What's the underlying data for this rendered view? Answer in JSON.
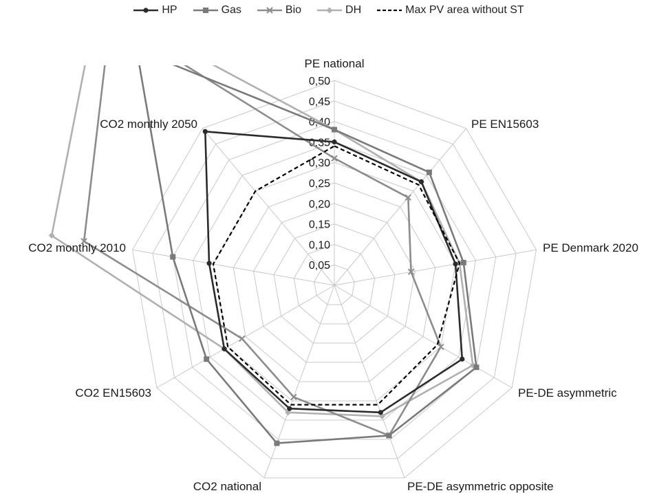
{
  "chart_data": {
    "type": "radar",
    "categories": [
      "PE national",
      "PE EN15603",
      "PE Denmark 2020",
      "PE-DE asymmetric",
      "PE-DE asymmetric opposite",
      "CO2 national",
      "CO2 EN15603",
      "CO2 monthly 2010",
      "CO2 monthly 2050"
    ],
    "ticks": [
      "0,05",
      "0,10",
      "0,15",
      "0,20",
      "0,25",
      "0,30",
      "0,35",
      "0,40",
      "0,45",
      "0,50"
    ],
    "rlim": [
      0,
      0.5
    ],
    "legend_position": "top",
    "series": [
      {
        "name": "HP",
        "color": "#2b2b2b",
        "dash": "",
        "marker": "circle",
        "values": [
          0.35,
          0.33,
          0.3,
          0.36,
          0.33,
          0.32,
          0.31,
          0.31,
          0.49
        ]
      },
      {
        "name": "Gas",
        "color": "#7a7a7a",
        "dash": "",
        "marker": "square",
        "values": [
          0.38,
          0.36,
          0.32,
          0.4,
          0.39,
          0.41,
          0.36,
          0.4,
          0.75
        ]
      },
      {
        "name": "Bio",
        "color": "#8c8c8c",
        "dash": "",
        "marker": "x",
        "values": [
          0.31,
          0.28,
          0.19,
          0.3,
          0.39,
          0.29,
          0.26,
          0.62,
          0.85
        ]
      },
      {
        "name": "DH",
        "color": "#b0b0b0",
        "dash": "",
        "marker": "diamond",
        "values": [
          0.38,
          0.33,
          0.31,
          0.39,
          0.34,
          0.33,
          0.31,
          0.7,
          0.9
        ]
      },
      {
        "name": "Max PV area without ST",
        "color": "#000000",
        "dash": "6,4",
        "marker": "",
        "values": [
          0.34,
          0.32,
          0.31,
          0.29,
          0.31,
          0.31,
          0.3,
          0.3,
          0.3
        ]
      }
    ]
  }
}
